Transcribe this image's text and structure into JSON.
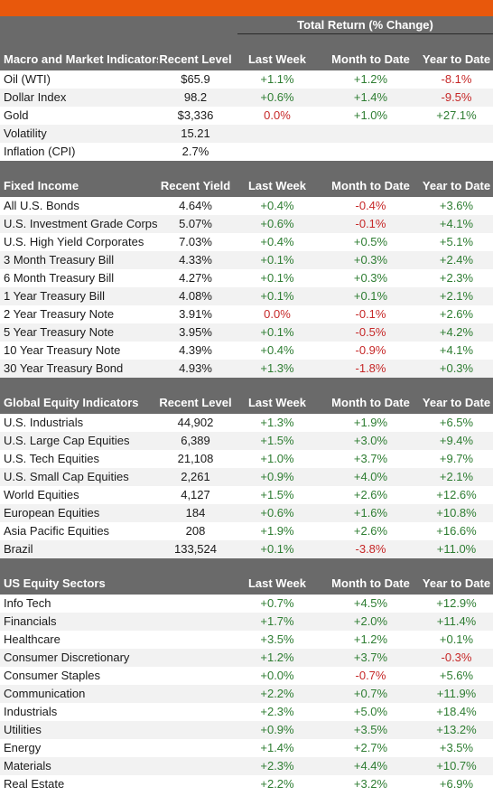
{
  "header": {
    "total_return_label": "Total Return (% Change)"
  },
  "sections": [
    {
      "id": "macro",
      "title": "Macro and Market Indicators",
      "level_label": "Recent Level",
      "columns": [
        "Last Week",
        "Month to Date",
        "Year to Date"
      ],
      "rows": [
        {
          "name": "Oil (WTI)",
          "level": "$65.9",
          "lw": "+1.1%",
          "mtd": "+1.2%",
          "ytd": "-8.1%"
        },
        {
          "name": "Dollar Index",
          "level": "98.2",
          "lw": "+0.6%",
          "mtd": "+1.4%",
          "ytd": "-9.5%"
        },
        {
          "name": "Gold",
          "level": "$3,336",
          "lw": "0.0%",
          "mtd": "+1.0%",
          "ytd": "+27.1%"
        },
        {
          "name": "Volatility",
          "level": "15.21",
          "lw": "",
          "mtd": "",
          "ytd": ""
        },
        {
          "name": "Inflation (CPI)",
          "level": "2.7%",
          "lw": "",
          "mtd": "",
          "ytd": ""
        }
      ]
    },
    {
      "id": "fixed",
      "title": "Fixed Income",
      "level_label": "Recent Yield",
      "columns": [
        "Last Week",
        "Month to Date",
        "Year to Date"
      ],
      "rows": [
        {
          "name": "All U.S. Bonds",
          "level": "4.64%",
          "lw": "+0.4%",
          "mtd": "-0.4%",
          "ytd": "+3.6%"
        },
        {
          "name": "U.S. Investment Grade Corps",
          "level": "5.07%",
          "lw": "+0.6%",
          "mtd": "-0.1%",
          "ytd": "+4.1%"
        },
        {
          "name": "U.S. High Yield Corporates",
          "level": "7.03%",
          "lw": "+0.4%",
          "mtd": "+0.5%",
          "ytd": "+5.1%"
        },
        {
          "name": "3 Month Treasury Bill",
          "level": "4.33%",
          "lw": "+0.1%",
          "mtd": "+0.3%",
          "ytd": "+2.4%"
        },
        {
          "name": "6 Month Treasury Bill",
          "level": "4.27%",
          "lw": "+0.1%",
          "mtd": "+0.3%",
          "ytd": "+2.3%"
        },
        {
          "name": "1 Year Treasury Bill",
          "level": "4.08%",
          "lw": "+0.1%",
          "mtd": "+0.1%",
          "ytd": "+2.1%"
        },
        {
          "name": "2 Year Treasury Note",
          "level": "3.91%",
          "lw": "0.0%",
          "mtd": "-0.1%",
          "ytd": "+2.6%"
        },
        {
          "name": "5 Year Treasury Note",
          "level": "3.95%",
          "lw": "+0.1%",
          "mtd": "-0.5%",
          "ytd": "+4.2%"
        },
        {
          "name": "10 Year Treasury Note",
          "level": "4.39%",
          "lw": "+0.4%",
          "mtd": "-0.9%",
          "ytd": "+4.1%"
        },
        {
          "name": "30 Year Treasury Bond",
          "level": "4.93%",
          "lw": "+1.3%",
          "mtd": "-1.8%",
          "ytd": "+0.3%"
        }
      ]
    },
    {
      "id": "equity",
      "title": "Global Equity Indicators",
      "level_label": "Recent Level",
      "columns": [
        "Last Week",
        "Month to Date",
        "Year to Date"
      ],
      "rows": [
        {
          "name": "U.S. Industrials",
          "level": "44,902",
          "lw": "+1.3%",
          "mtd": "+1.9%",
          "ytd": "+6.5%"
        },
        {
          "name": "U.S. Large Cap Equities",
          "level": "6,389",
          "lw": "+1.5%",
          "mtd": "+3.0%",
          "ytd": "+9.4%"
        },
        {
          "name": "U.S. Tech Equities",
          "level": "21,108",
          "lw": "+1.0%",
          "mtd": "+3.7%",
          "ytd": "+9.7%"
        },
        {
          "name": "U.S. Small Cap Equities",
          "level": "2,261",
          "lw": "+0.9%",
          "mtd": "+4.0%",
          "ytd": "+2.1%"
        },
        {
          "name": "World Equities",
          "level": "4,127",
          "lw": "+1.5%",
          "mtd": "+2.6%",
          "ytd": "+12.6%"
        },
        {
          "name": "European Equities",
          "level": "184",
          "lw": "+0.6%",
          "mtd": "+1.6%",
          "ytd": "+10.8%"
        },
        {
          "name": "Asia Pacific Equities",
          "level": "208",
          "lw": "+1.9%",
          "mtd": "+2.6%",
          "ytd": "+16.6%"
        },
        {
          "name": "Brazil",
          "level": "133,524",
          "lw": "+0.1%",
          "mtd": "-3.8%",
          "ytd": "+11.0%"
        }
      ]
    },
    {
      "id": "sectors",
      "title": "US Equity Sectors",
      "level_label": "",
      "columns": [
        "Last Week",
        "Month to Date",
        "Year to Date"
      ],
      "rows": [
        {
          "name": "Info Tech",
          "level": "",
          "lw": "+0.7%",
          "mtd": "+4.5%",
          "ytd": "+12.9%"
        },
        {
          "name": "Financials",
          "level": "",
          "lw": "+1.7%",
          "mtd": "+2.0%",
          "ytd": "+11.4%"
        },
        {
          "name": "Healthcare",
          "level": "",
          "lw": "+3.5%",
          "mtd": "+1.2%",
          "ytd": "+0.1%"
        },
        {
          "name": "Consumer Discretionary",
          "level": "",
          "lw": "+1.2%",
          "mtd": "+3.7%",
          "ytd": "-0.3%"
        },
        {
          "name": "Consumer Staples",
          "level": "",
          "lw": "+0.0%",
          "mtd": "-0.7%",
          "ytd": "+5.6%"
        },
        {
          "name": "Communication",
          "level": "",
          "lw": "+2.2%",
          "mtd": "+0.7%",
          "ytd": "+11.9%"
        },
        {
          "name": "Industrials",
          "level": "",
          "lw": "+2.3%",
          "mtd": "+5.0%",
          "ytd": "+18.4%"
        },
        {
          "name": "Utilities",
          "level": "",
          "lw": "+0.9%",
          "mtd": "+3.5%",
          "ytd": "+13.2%"
        },
        {
          "name": "Energy",
          "level": "",
          "lw": "+1.4%",
          "mtd": "+2.7%",
          "ytd": "+3.5%"
        },
        {
          "name": "Materials",
          "level": "",
          "lw": "+2.3%",
          "mtd": "+4.4%",
          "ytd": "+10.7%"
        },
        {
          "name": "Real Estate",
          "level": "",
          "lw": "+2.2%",
          "mtd": "+3.2%",
          "ytd": "+6.9%"
        }
      ]
    }
  ],
  "colors": {
    "accent_bar": "#e8580c",
    "header_bg": "#6a6a6a",
    "positive": "#2e7d32",
    "negative": "#c62828"
  }
}
